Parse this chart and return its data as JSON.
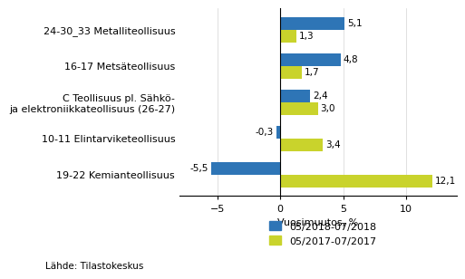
{
  "categories": [
    "19-22 Kemianteollisuus",
    "10-11 Elintarviketeollisuus",
    "C Teollisuus pl. Sähkö-\nja elektroniikkateollisuus (26-27)",
    "16-17 Metsäteollisuus",
    "24-30_33 Metalliteollisuus"
  ],
  "series_2018": [
    -5.5,
    -0.3,
    2.4,
    4.8,
    5.1
  ],
  "series_2017": [
    12.1,
    3.4,
    3.0,
    1.7,
    1.3
  ],
  "color_2018": "#2E75B6",
  "color_2017": "#C9D32C",
  "xlabel": "Vuosimuutos, %",
  "legend_2018": "05/2018-07/2018",
  "legend_2017": "05/2017-07/2017",
  "source": "Lähde: Tilastokeskus",
  "xlim": [
    -8,
    14
  ],
  "xticks": [
    -5,
    0,
    5,
    10
  ],
  "bar_height": 0.35,
  "value_fontsize": 7.5,
  "label_fontsize": 8
}
